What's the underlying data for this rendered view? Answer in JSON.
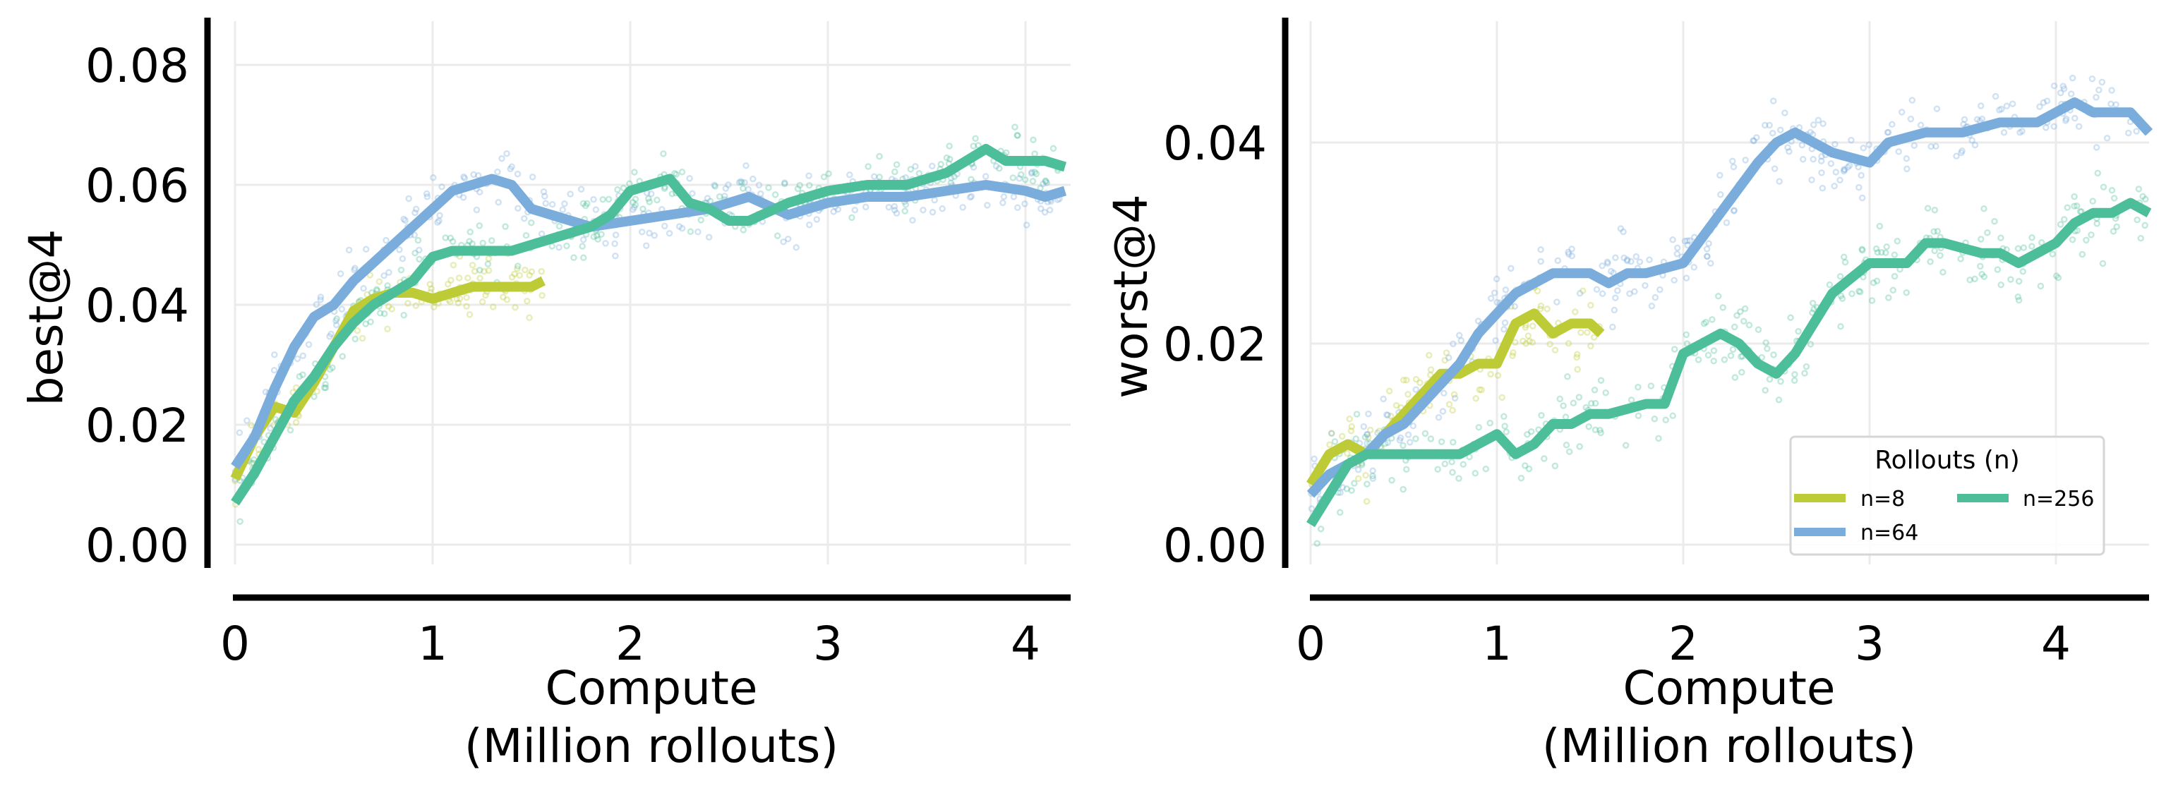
{
  "chart_data": [
    {
      "type": "line",
      "title": "",
      "xlabel": "Compute\n(Million rollouts)",
      "ylabel": "best@4",
      "xlim": [
        0,
        4.2
      ],
      "ylim": [
        -0.004,
        0.087
      ],
      "xticks": [
        "0",
        "1",
        "2",
        "3",
        "4"
      ],
      "yticks": [
        "0.00",
        "0.02",
        "0.04",
        "0.06",
        "0.08"
      ],
      "grid": true,
      "legend": null,
      "series": [
        {
          "name": "n=8",
          "color": "#bccb36",
          "x": [
            0,
            0.1,
            0.2,
            0.3,
            0.4,
            0.5,
            0.6,
            0.7,
            0.8,
            0.9,
            1.0,
            1.1,
            1.2,
            1.3,
            1.4,
            1.5,
            1.56
          ],
          "y": [
            0.011,
            0.018,
            0.023,
            0.022,
            0.027,
            0.033,
            0.039,
            0.041,
            0.042,
            0.042,
            0.041,
            0.042,
            0.043,
            0.043,
            0.043,
            0.043,
            0.044
          ]
        },
        {
          "name": "n=64",
          "color": "#7aaddc",
          "x": [
            0,
            0.1,
            0.2,
            0.3,
            0.4,
            0.5,
            0.6,
            0.7,
            0.8,
            0.9,
            1.0,
            1.1,
            1.2,
            1.3,
            1.4,
            1.5,
            1.6,
            1.7,
            1.8,
            2.0,
            2.2,
            2.4,
            2.6,
            2.8,
            3.0,
            3.2,
            3.4,
            3.6,
            3.8,
            4.0,
            4.1,
            4.2
          ],
          "y": [
            0.013,
            0.018,
            0.026,
            0.033,
            0.038,
            0.04,
            0.044,
            0.047,
            0.05,
            0.053,
            0.056,
            0.059,
            0.06,
            0.061,
            0.06,
            0.056,
            0.055,
            0.054,
            0.053,
            0.054,
            0.055,
            0.056,
            0.058,
            0.055,
            0.057,
            0.058,
            0.058,
            0.059,
            0.06,
            0.059,
            0.058,
            0.059
          ]
        },
        {
          "name": "n=256",
          "color": "#4cbf9a",
          "x": [
            0,
            0.1,
            0.2,
            0.3,
            0.4,
            0.5,
            0.6,
            0.7,
            0.8,
            0.9,
            1.0,
            1.1,
            1.2,
            1.3,
            1.4,
            1.5,
            1.6,
            1.7,
            1.8,
            1.9,
            2.0,
            2.1,
            2.2,
            2.3,
            2.4,
            2.5,
            2.6,
            2.8,
            3.0,
            3.2,
            3.4,
            3.6,
            3.7,
            3.8,
            3.9,
            4.0,
            4.1,
            4.2
          ],
          "y": [
            0.007,
            0.012,
            0.018,
            0.024,
            0.028,
            0.033,
            0.037,
            0.04,
            0.042,
            0.044,
            0.048,
            0.049,
            0.049,
            0.049,
            0.049,
            0.05,
            0.051,
            0.052,
            0.053,
            0.055,
            0.059,
            0.06,
            0.061,
            0.057,
            0.056,
            0.054,
            0.054,
            0.057,
            0.059,
            0.06,
            0.06,
            0.062,
            0.064,
            0.066,
            0.064,
            0.064,
            0.064,
            0.063
          ]
        }
      ]
    },
    {
      "type": "line",
      "title": "",
      "xlabel": "Compute\n(Million rollouts)",
      "ylabel": "worst@4",
      "xlim": [
        0,
        4.5
      ],
      "ylim": [
        -0.002,
        0.054
      ],
      "xticks": [
        "0",
        "1",
        "2",
        "3",
        "4"
      ],
      "yticks": [
        "0.00",
        "0.02",
        "0.04"
      ],
      "grid": true,
      "legend": {
        "title": "Rollouts (n)",
        "position": "lower right",
        "entries": [
          "n=8",
          "n=64",
          "n=256"
        ]
      },
      "series": [
        {
          "name": "n=8",
          "color": "#bccb36",
          "x": [
            0,
            0.1,
            0.2,
            0.3,
            0.4,
            0.5,
            0.6,
            0.7,
            0.8,
            0.9,
            1.0,
            1.1,
            1.2,
            1.3,
            1.4,
            1.5,
            1.56
          ],
          "y": [
            0.006,
            0.009,
            0.01,
            0.009,
            0.011,
            0.013,
            0.015,
            0.017,
            0.017,
            0.018,
            0.018,
            0.022,
            0.023,
            0.021,
            0.022,
            0.022,
            0.021
          ]
        },
        {
          "name": "n=64",
          "color": "#7aaddc",
          "x": [
            0,
            0.1,
            0.2,
            0.3,
            0.4,
            0.5,
            0.6,
            0.7,
            0.8,
            0.9,
            1.0,
            1.1,
            1.2,
            1.3,
            1.4,
            1.5,
            1.6,
            1.7,
            1.8,
            2.0,
            2.2,
            2.4,
            2.5,
            2.6,
            2.7,
            2.8,
            3.0,
            3.1,
            3.3,
            3.5,
            3.7,
            3.9,
            4.0,
            4.1,
            4.2,
            4.3,
            4.4,
            4.5
          ],
          "y": [
            0.005,
            0.007,
            0.008,
            0.009,
            0.011,
            0.012,
            0.014,
            0.016,
            0.018,
            0.021,
            0.023,
            0.025,
            0.026,
            0.027,
            0.027,
            0.027,
            0.026,
            0.027,
            0.027,
            0.028,
            0.033,
            0.038,
            0.04,
            0.041,
            0.04,
            0.039,
            0.038,
            0.04,
            0.041,
            0.041,
            0.042,
            0.042,
            0.043,
            0.044,
            0.043,
            0.043,
            0.043,
            0.041
          ]
        },
        {
          "name": "n=256",
          "color": "#4cbf9a",
          "x": [
            0,
            0.1,
            0.2,
            0.3,
            0.4,
            0.5,
            0.6,
            0.7,
            0.8,
            0.9,
            1.0,
            1.1,
            1.2,
            1.3,
            1.4,
            1.5,
            1.6,
            1.8,
            1.9,
            2.0,
            2.1,
            2.2,
            2.3,
            2.4,
            2.5,
            2.6,
            2.7,
            2.8,
            3.0,
            3.1,
            3.2,
            3.3,
            3.4,
            3.6,
            3.7,
            3.8,
            3.9,
            4.0,
            4.1,
            4.2,
            4.3,
            4.4,
            4.5
          ],
          "y": [
            0.002,
            0.005,
            0.008,
            0.009,
            0.009,
            0.009,
            0.009,
            0.009,
            0.009,
            0.01,
            0.011,
            0.009,
            0.01,
            0.012,
            0.012,
            0.013,
            0.013,
            0.014,
            0.014,
            0.019,
            0.02,
            0.021,
            0.02,
            0.018,
            0.017,
            0.019,
            0.022,
            0.025,
            0.028,
            0.028,
            0.028,
            0.03,
            0.03,
            0.029,
            0.029,
            0.028,
            0.029,
            0.03,
            0.032,
            0.033,
            0.033,
            0.034,
            0.033
          ]
        }
      ]
    }
  ],
  "left": {
    "ylabel": "best@4",
    "xlabel_line1": "Compute",
    "xlabel_line2": "(Million rollouts)",
    "xticks": [
      "0",
      "1",
      "2",
      "3",
      "4"
    ],
    "yticks": [
      "0.00",
      "0.02",
      "0.04",
      "0.06",
      "0.08"
    ]
  },
  "right": {
    "ylabel": "worst@4",
    "xlabel_line1": "Compute",
    "xlabel_line2": "(Million rollouts)",
    "xticks": [
      "0",
      "1",
      "2",
      "3",
      "4"
    ],
    "yticks": [
      "0.00",
      "0.02",
      "0.04"
    ]
  },
  "legend": {
    "title": "Rollouts (n)",
    "entries": [
      {
        "label": "n=8",
        "color": "#bccb36"
      },
      {
        "label": "n=64",
        "color": "#7aaddc"
      },
      {
        "label": "n=256",
        "color": "#4cbf9a"
      }
    ]
  }
}
